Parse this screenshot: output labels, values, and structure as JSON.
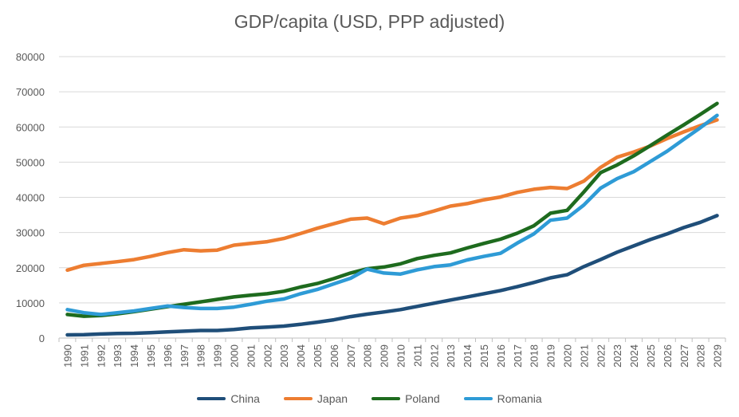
{
  "chart_data": {
    "type": "line",
    "title": "GDP/capita (USD, PPP adjusted)",
    "xlabel": "",
    "ylabel": "",
    "ylim": [
      0,
      80000
    ],
    "yticks": [
      0,
      10000,
      20000,
      30000,
      40000,
      50000,
      60000,
      70000,
      80000
    ],
    "ytick_labels": [
      "0",
      "10000",
      "20000",
      "30000",
      "40000",
      "50000",
      "60000",
      "70000",
      "80000"
    ],
    "grid": true,
    "legend_position": "bottom",
    "categories": [
      "1990",
      "1991",
      "1992",
      "1993",
      "1994",
      "1995",
      "1996",
      "1997",
      "1998",
      "1999",
      "2000",
      "2001",
      "2002",
      "2003",
      "2004",
      "2005",
      "2006",
      "2007",
      "2008",
      "2009",
      "2010",
      "2011",
      "2012",
      "2013",
      "2014",
      "2015",
      "2016",
      "2017",
      "2018",
      "2019",
      "2020",
      "2021",
      "2022",
      "2023",
      "2024",
      "2025",
      "2026",
      "2027",
      "2028",
      "2029"
    ],
    "series": [
      {
        "name": "China",
        "color": "#1F4E79",
        "values": [
          900,
          950,
          1150,
          1300,
          1350,
          1550,
          1750,
          1950,
          2150,
          2150,
          2450,
          2900,
          3100,
          3400,
          3900,
          4500,
          5200,
          6100,
          6800,
          7400,
          8100,
          9000,
          9900,
          10800,
          11700,
          12600,
          13500,
          14600,
          15800,
          17100,
          18000,
          20300,
          22300,
          24400,
          26200,
          28000,
          29600,
          31400,
          32900,
          34800
        ]
      },
      {
        "name": "Japan",
        "color": "#ED7D31",
        "values": [
          19300,
          20700,
          21200,
          21700,
          22300,
          23200,
          24300,
          25100,
          24800,
          25000,
          26400,
          26900,
          27400,
          28300,
          29700,
          31200,
          32500,
          33800,
          34100,
          32500,
          34100,
          34800,
          36100,
          37500,
          38200,
          39300,
          40100,
          41400,
          42300,
          42800,
          42500,
          44600,
          48500,
          51400,
          52900,
          54600,
          56700,
          58600,
          60400,
          62000
        ]
      },
      {
        "name": "Poland",
        "color": "#1E6B1E",
        "values": [
          6700,
          6200,
          6400,
          6900,
          7500,
          8200,
          8900,
          9600,
          10300,
          11000,
          11700,
          12200,
          12600,
          13300,
          14500,
          15500,
          16900,
          18500,
          19700,
          20200,
          21100,
          22600,
          23500,
          24200,
          25600,
          26900,
          28100,
          29800,
          31900,
          35500,
          36300,
          41500,
          47000,
          49200,
          51800,
          54700,
          57700,
          60600,
          63600,
          66700
        ]
      },
      {
        "name": "Romania",
        "color": "#2E9BD6",
        "values": [
          8100,
          7200,
          6700,
          7200,
          7700,
          8400,
          9100,
          8700,
          8400,
          8400,
          8800,
          9600,
          10500,
          11100,
          12600,
          13800,
          15400,
          17000,
          19600,
          18500,
          18200,
          19400,
          20300,
          20800,
          22200,
          23200,
          24100,
          27000,
          29600,
          33500,
          34100,
          37800,
          42600,
          45300,
          47300,
          50200,
          53100,
          56500,
          59800,
          63300
        ]
      }
    ]
  }
}
